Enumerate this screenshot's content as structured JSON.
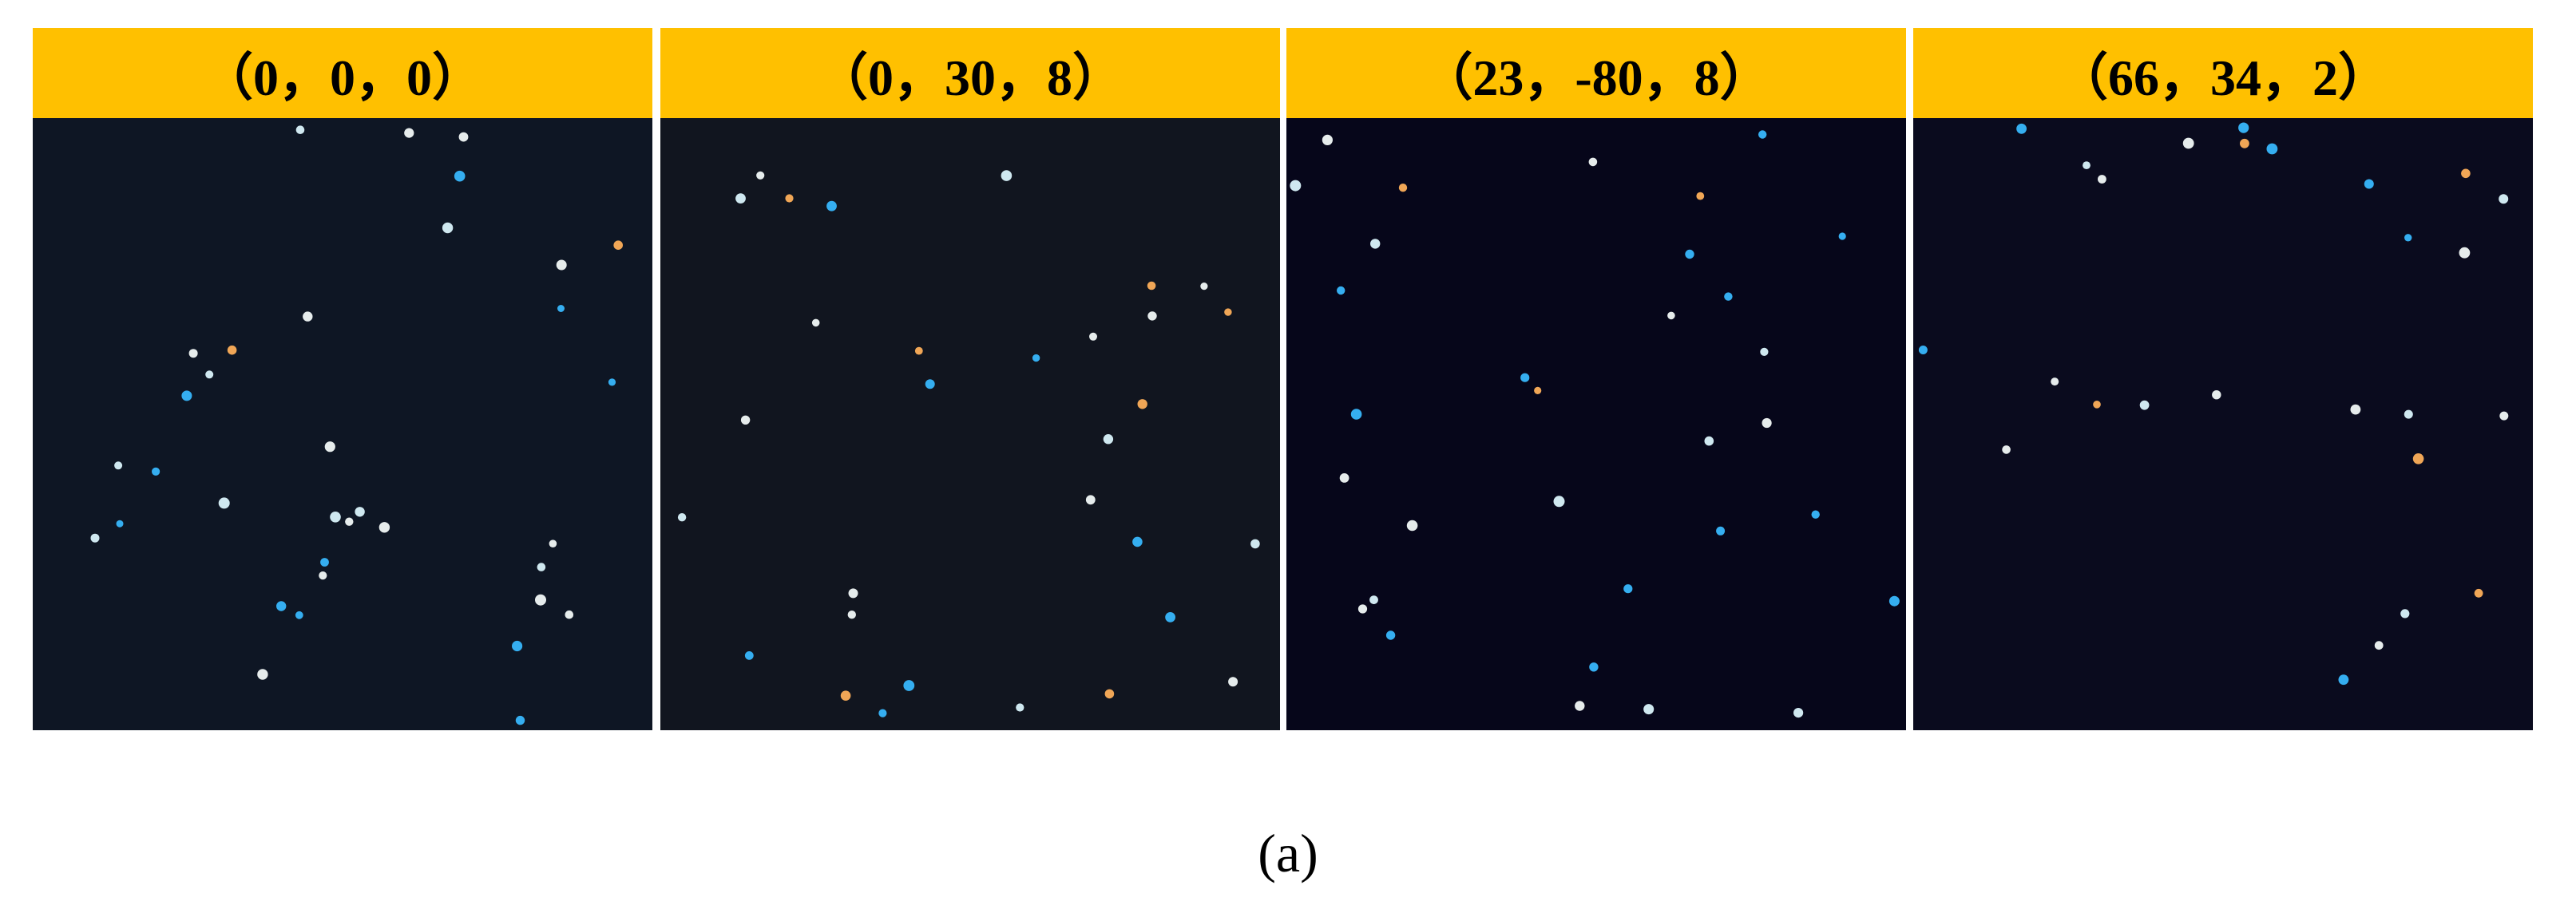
{
  "panels": [
    {
      "label": "（0，0，0）"
    },
    {
      "label": "（0，30，8）"
    },
    {
      "label": "（23，-80，8）"
    },
    {
      "label": "（66，34，2）"
    }
  ],
  "caption": "(a)"
}
